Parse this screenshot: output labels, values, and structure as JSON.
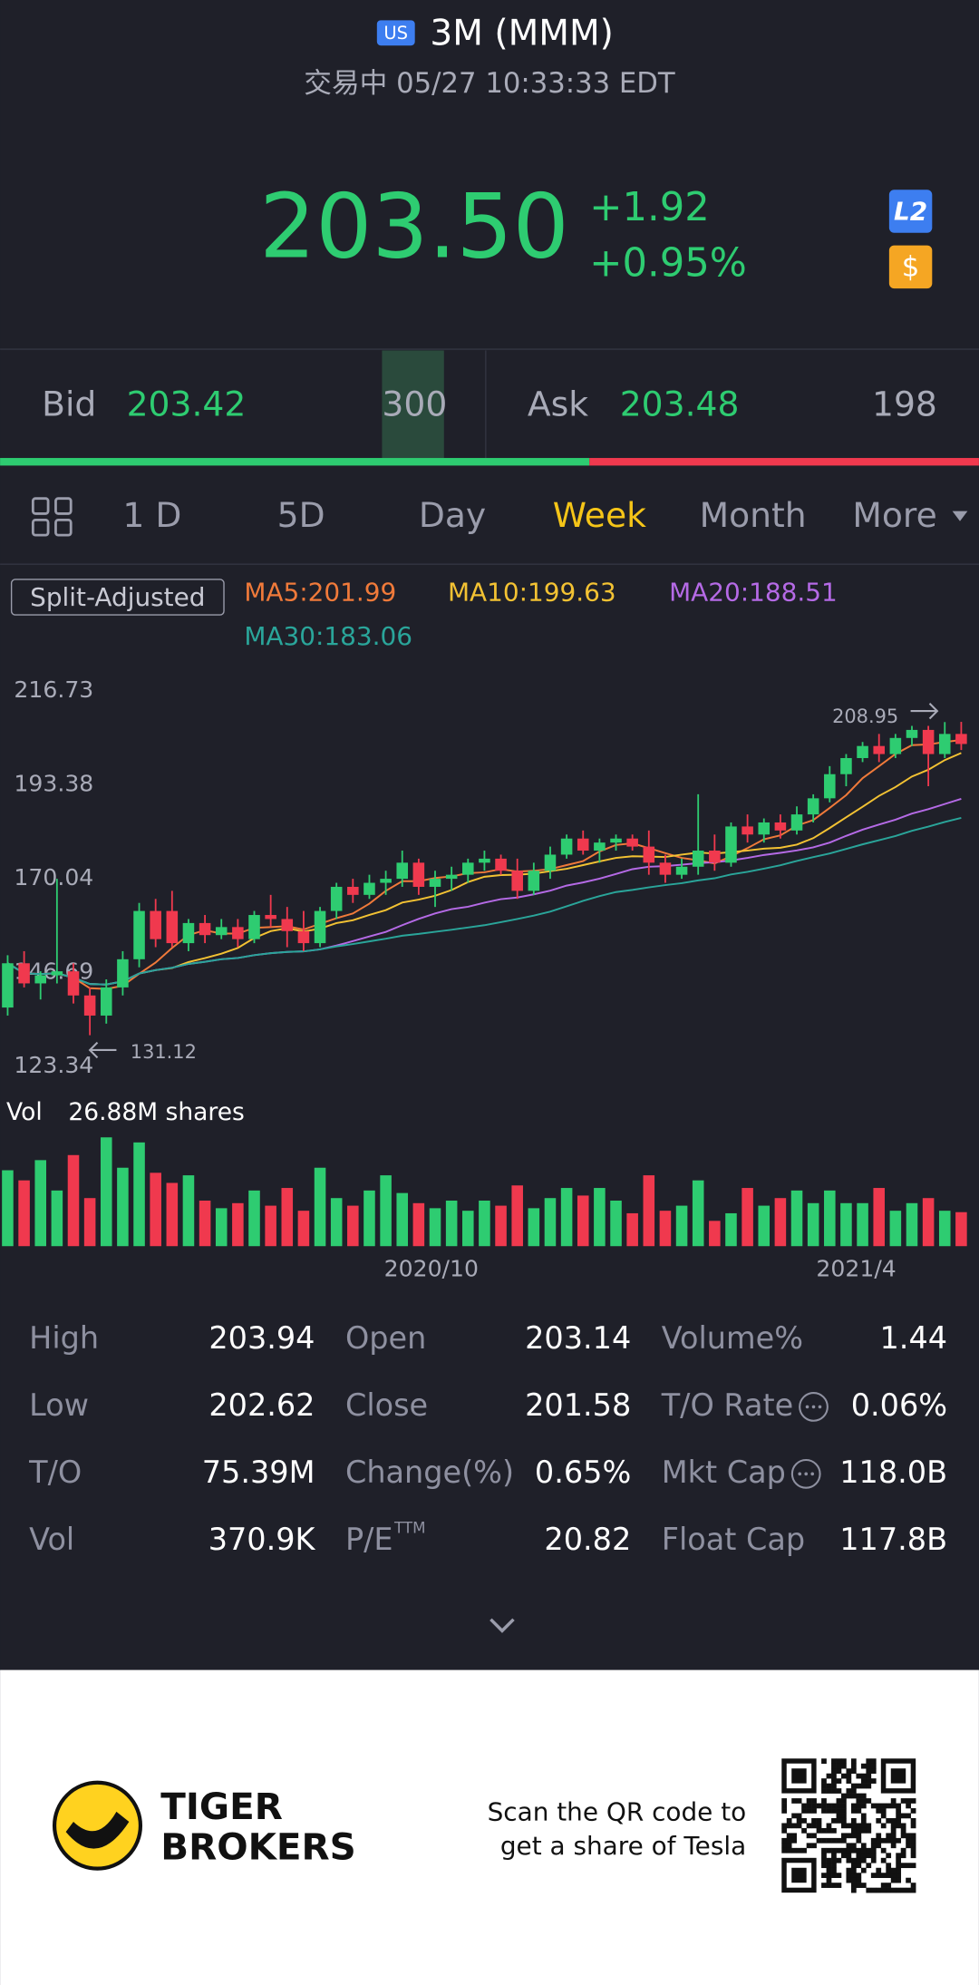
{
  "header": {
    "market": "US",
    "name": "3M (MMM)",
    "status": "交易中 05/27 10:33:33 EDT"
  },
  "quote": {
    "price": "203.50",
    "change": "+1.92",
    "change_pct": "+0.95%",
    "badges": [
      "L2",
      "$"
    ]
  },
  "book": {
    "bid_label": "Bid",
    "bid": "203.42",
    "bid_size": "300",
    "ask_label": "Ask",
    "ask": "203.48",
    "ask_size": "198"
  },
  "tabs": {
    "items": [
      "1 D",
      "5D",
      "Day",
      "Week",
      "Month",
      "More"
    ],
    "active": 3
  },
  "kline": {
    "adjust": "Split-Adjusted",
    "ma_labels": [
      "MA5:201.99",
      "MA10:199.63",
      "MA20:188.51",
      "MA30:183.06"
    ],
    "ma_windows": [
      5,
      10,
      20,
      30
    ],
    "ma_colors": [
      "#f07a3a",
      "#f3c233",
      "#b56ae6",
      "#2aa59a"
    ],
    "ylim": [
      123.34,
      216.73
    ],
    "yticks": [
      216.73,
      193.38,
      170.04,
      146.69,
      123.34
    ],
    "max_label": "208.95",
    "min_label": "131.12",
    "up_color": "#2ecc71",
    "down_color": "#f0394e",
    "candles": [
      [
        138,
        151,
        136,
        149
      ],
      [
        149,
        152,
        143,
        144
      ],
      [
        144,
        147,
        140,
        146
      ],
      [
        146,
        170,
        144,
        147
      ],
      [
        147,
        149,
        139,
        141
      ],
      [
        141,
        143,
        131.12,
        136
      ],
      [
        136,
        145,
        134,
        143
      ],
      [
        143,
        152,
        141,
        150
      ],
      [
        150,
        164,
        148,
        162
      ],
      [
        162,
        165,
        153,
        155
      ],
      [
        162,
        167,
        153,
        154
      ],
      [
        154,
        160,
        152,
        159
      ],
      [
        159,
        161,
        154,
        156
      ],
      [
        156,
        160,
        155,
        158
      ],
      [
        158,
        160,
        153,
        155
      ],
      [
        155,
        162,
        154,
        161
      ],
      [
        161,
        166,
        158,
        160
      ],
      [
        160,
        163,
        153,
        157
      ],
      [
        157,
        162,
        152,
        154
      ],
      [
        154,
        163,
        153,
        162
      ],
      [
        162,
        169,
        160,
        168
      ],
      [
        168,
        170,
        164,
        166
      ],
      [
        166,
        171,
        165,
        169
      ],
      [
        169,
        172,
        166,
        170
      ],
      [
        170,
        177,
        168,
        174
      ],
      [
        174,
        175,
        166,
        168
      ],
      [
        168,
        172,
        163,
        170
      ],
      [
        170,
        173,
        167,
        171
      ],
      [
        171,
        175,
        169,
        174
      ],
      [
        174,
        177,
        172,
        175
      ],
      [
        175,
        176,
        171,
        172
      ],
      [
        172,
        175,
        165,
        167
      ],
      [
        167,
        174,
        166,
        172
      ],
      [
        172,
        178,
        170,
        176
      ],
      [
        176,
        181,
        175,
        180
      ],
      [
        180,
        182,
        176,
        177
      ],
      [
        177,
        180,
        174,
        179
      ],
      [
        179,
        181,
        177,
        180
      ],
      [
        180,
        181,
        177,
        178
      ],
      [
        178,
        182,
        171,
        174
      ],
      [
        174,
        176,
        169,
        171
      ],
      [
        171,
        175,
        170,
        173
      ],
      [
        173,
        191,
        171,
        177
      ],
      [
        177,
        181,
        172,
        174
      ],
      [
        174,
        184,
        173,
        183
      ],
      [
        183,
        186,
        179,
        181
      ],
      [
        181,
        185,
        179,
        184
      ],
      [
        184,
        186,
        180,
        182
      ],
      [
        182,
        188,
        181,
        186
      ],
      [
        186,
        191,
        184,
        190
      ],
      [
        190,
        198,
        189,
        196
      ],
      [
        196,
        201,
        193,
        200
      ],
      [
        200,
        204,
        199,
        203
      ],
      [
        203,
        206,
        199,
        201
      ],
      [
        201,
        206,
        200,
        205
      ],
      [
        205,
        208,
        203,
        207
      ],
      [
        207,
        208,
        193,
        201
      ],
      [
        201,
        208.95,
        200,
        206
      ],
      [
        206,
        209,
        202,
        203.5
      ]
    ],
    "vol_label": "Vol",
    "vol_text": "26.88M shares",
    "volumes": [
      60,
      52,
      68,
      44,
      72,
      38,
      86,
      62,
      82,
      58,
      50,
      56,
      36,
      30,
      34,
      44,
      32,
      46,
      28,
      62,
      38,
      32,
      44,
      56,
      42,
      34,
      30,
      36,
      28,
      36,
      32,
      48,
      30,
      38,
      46,
      40,
      46,
      36,
      26,
      56,
      28,
      32,
      52,
      20,
      26,
      46,
      32,
      38,
      44,
      34,
      44,
      34,
      34,
      46,
      28,
      34,
      38,
      28,
      26.88
    ],
    "dates": [
      "2020/10",
      "2021/4"
    ]
  },
  "stats": [
    [
      {
        "label": "High",
        "value": "203.94"
      },
      {
        "label": "Open",
        "value": "203.14"
      },
      {
        "label": "Volume%",
        "value": "1.44"
      }
    ],
    [
      {
        "label": "Low",
        "value": "202.62"
      },
      {
        "label": "Close",
        "value": "201.58"
      },
      {
        "label": "T/O Rate",
        "value": "0.06%",
        "info": true
      }
    ],
    [
      {
        "label": "T/O",
        "value": "75.39M"
      },
      {
        "label": "Change(%)",
        "value": "0.65%"
      },
      {
        "label": "Mkt Cap",
        "value": "118.0B",
        "info": true
      }
    ],
    [
      {
        "label": "Vol",
        "value": "370.9K"
      },
      {
        "label": "P/E",
        "sup": "TTM",
        "value": "20.82"
      },
      {
        "label": "Float Cap",
        "value": "117.8B"
      }
    ]
  ],
  "footer": {
    "brand": [
      "TIGER",
      "BROKERS"
    ],
    "promo": [
      "Scan the QR code to",
      "get a share of Tesla"
    ]
  }
}
